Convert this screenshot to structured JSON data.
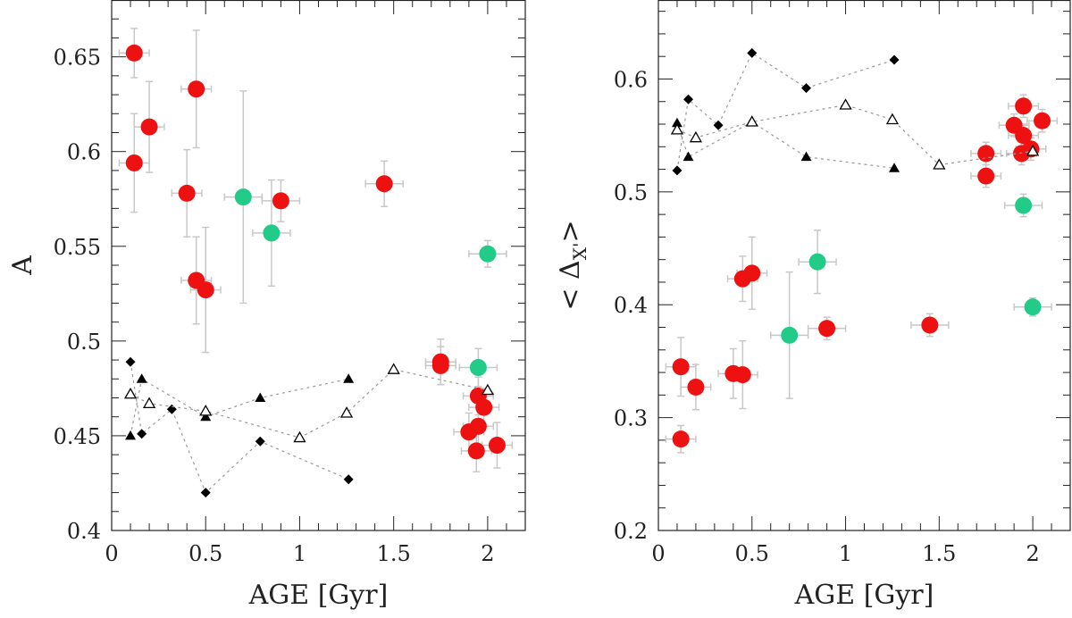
{
  "chart_data": [
    {
      "type": "scatter",
      "xlabel": "AGE [Gyr]",
      "ylabel": "A",
      "xlim": [
        0,
        2.2
      ],
      "ylim": [
        0.4,
        0.68
      ],
      "x_ticks": [
        0,
        0.5,
        1,
        1.5,
        2
      ],
      "x_tick_labels": [
        "0",
        "0.5",
        "1",
        "1.5",
        "2"
      ],
      "y_ticks": [
        0.4,
        0.45,
        0.5,
        0.55,
        0.6,
        0.65
      ],
      "y_tick_labels": [
        "0.4",
        "0.45",
        "0.5",
        "0.55",
        "0.6",
        "0.65"
      ],
      "grid": false,
      "series": [
        {
          "marker": "circle",
          "color": "#ee1111",
          "points": [
            {
              "x": 0.12,
              "y": 0.652,
              "xerr": 0.08,
              "yerr": 0.013
            },
            {
              "x": 0.2,
              "y": 0.613,
              "xerr": 0.08,
              "yerr": 0.024
            },
            {
              "x": 0.12,
              "y": 0.594,
              "xerr": 0.08,
              "yerr": 0.026
            },
            {
              "x": 0.45,
              "y": 0.633,
              "xerr": 0.08,
              "yerr": 0.031
            },
            {
              "x": 0.4,
              "y": 0.578,
              "xerr": 0.08,
              "yerr": 0.023
            },
            {
              "x": 0.45,
              "y": 0.532,
              "xerr": 0.08,
              "yerr": 0.023
            },
            {
              "x": 0.5,
              "y": 0.527,
              "xerr": 0.08,
              "yerr": 0.033
            },
            {
              "x": 0.9,
              "y": 0.574,
              "xerr": 0.1,
              "yerr": 0.011
            },
            {
              "x": 1.45,
              "y": 0.583,
              "xerr": 0.1,
              "yerr": 0.012
            },
            {
              "x": 1.75,
              "y": 0.489,
              "xerr": 0.08,
              "yerr": 0.012
            },
            {
              "x": 1.75,
              "y": 0.487,
              "xerr": 0.08,
              "yerr": 0.01
            },
            {
              "x": 1.95,
              "y": 0.471,
              "xerr": 0.08,
              "yerr": 0.01
            },
            {
              "x": 1.98,
              "y": 0.465,
              "xerr": 0.08,
              "yerr": 0.01
            },
            {
              "x": 1.95,
              "y": 0.455,
              "xerr": 0.08,
              "yerr": 0.011
            },
            {
              "x": 1.9,
              "y": 0.452,
              "xerr": 0.08,
              "yerr": 0.01
            },
            {
              "x": 1.94,
              "y": 0.442,
              "xerr": 0.08,
              "yerr": 0.011
            },
            {
              "x": 2.05,
              "y": 0.445,
              "xerr": 0.08,
              "yerr": 0.012
            }
          ]
        },
        {
          "marker": "circle",
          "color": "#22cc88",
          "points": [
            {
              "x": 0.7,
              "y": 0.576,
              "xerr": 0.1,
              "yerr": 0.056
            },
            {
              "x": 0.85,
              "y": 0.557,
              "xerr": 0.1,
              "yerr": 0.028
            },
            {
              "x": 2.0,
              "y": 0.546,
              "xerr": 0.1,
              "yerr": 0.007
            },
            {
              "x": 1.95,
              "y": 0.486,
              "xerr": 0.1,
              "yerr": 0.01
            }
          ]
        },
        {
          "marker": "diamond",
          "color": "#000000",
          "line": "dotted",
          "points": [
            {
              "x": 0.1,
              "y": 0.489
            },
            {
              "x": 0.16,
              "y": 0.451
            },
            {
              "x": 0.32,
              "y": 0.464
            },
            {
              "x": 0.5,
              "y": 0.42
            },
            {
              "x": 0.79,
              "y": 0.447
            },
            {
              "x": 1.26,
              "y": 0.427
            }
          ]
        },
        {
          "marker": "triangle-filled",
          "color": "#000000",
          "line": "dotted",
          "points": [
            {
              "x": 0.1,
              "y": 0.45
            },
            {
              "x": 0.16,
              "y": 0.48
            },
            {
              "x": 0.5,
              "y": 0.46
            },
            {
              "x": 0.79,
              "y": 0.47
            },
            {
              "x": 1.26,
              "y": 0.48
            }
          ]
        },
        {
          "marker": "triangle-open",
          "color": "#000000",
          "line": "dotted",
          "points": [
            {
              "x": 0.1,
              "y": 0.472
            },
            {
              "x": 0.2,
              "y": 0.467
            },
            {
              "x": 0.5,
              "y": 0.463
            },
            {
              "x": 1.0,
              "y": 0.449
            },
            {
              "x": 1.25,
              "y": 0.462
            },
            {
              "x": 1.5,
              "y": 0.485
            },
            {
              "x": 2.0,
              "y": 0.474
            }
          ]
        }
      ]
    },
    {
      "type": "scatter",
      "xlabel": "AGE [Gyr]",
      "ylabel": "<Δ_X'>",
      "ylabel_parts": {
        "open": "<",
        "symbol": "Δ",
        "sub": "X'",
        "close": ">"
      },
      "xlim": [
        0,
        2.2
      ],
      "ylim": [
        0.2,
        0.67
      ],
      "x_ticks": [
        0,
        0.5,
        1,
        1.5,
        2
      ],
      "x_tick_labels": [
        "0",
        "0.5",
        "1",
        "1.5",
        "2"
      ],
      "y_ticks": [
        0.2,
        0.3,
        0.4,
        0.5,
        0.6
      ],
      "y_tick_labels": [
        "0.2",
        "0.3",
        "0.4",
        "0.5",
        "0.6"
      ],
      "grid": false,
      "series": [
        {
          "marker": "circle",
          "color": "#ee1111",
          "points": [
            {
              "x": 0.12,
              "y": 0.345,
              "xerr": 0.08,
              "yerr": 0.026
            },
            {
              "x": 0.2,
              "y": 0.327,
              "xerr": 0.08,
              "yerr": 0.02
            },
            {
              "x": 0.12,
              "y": 0.281,
              "xerr": 0.08,
              "yerr": 0.012
            },
            {
              "x": 0.4,
              "y": 0.339,
              "xerr": 0.08,
              "yerr": 0.022
            },
            {
              "x": 0.45,
              "y": 0.338,
              "xerr": 0.08,
              "yerr": 0.03
            },
            {
              "x": 0.45,
              "y": 0.423,
              "xerr": 0.08,
              "yerr": 0.02
            },
            {
              "x": 0.5,
              "y": 0.428,
              "xerr": 0.08,
              "yerr": 0.032
            },
            {
              "x": 0.9,
              "y": 0.379,
              "xerr": 0.1,
              "yerr": 0.01
            },
            {
              "x": 1.45,
              "y": 0.382,
              "xerr": 0.1,
              "yerr": 0.01
            },
            {
              "x": 1.75,
              "y": 0.534,
              "xerr": 0.08,
              "yerr": 0.01
            },
            {
              "x": 1.75,
              "y": 0.514,
              "xerr": 0.08,
              "yerr": 0.01
            },
            {
              "x": 1.9,
              "y": 0.559,
              "xerr": 0.08,
              "yerr": 0.01
            },
            {
              "x": 1.95,
              "y": 0.576,
              "xerr": 0.08,
              "yerr": 0.01
            },
            {
              "x": 1.95,
              "y": 0.55,
              "xerr": 0.08,
              "yerr": 0.01
            },
            {
              "x": 1.94,
              "y": 0.534,
              "xerr": 0.08,
              "yerr": 0.01
            },
            {
              "x": 1.99,
              "y": 0.538,
              "xerr": 0.08,
              "yerr": 0.01
            },
            {
              "x": 2.05,
              "y": 0.563,
              "xerr": 0.08,
              "yerr": 0.01
            }
          ]
        },
        {
          "marker": "circle",
          "color": "#22cc88",
          "points": [
            {
              "x": 0.7,
              "y": 0.373,
              "xerr": 0.1,
              "yerr": 0.056
            },
            {
              "x": 0.85,
              "y": 0.438,
              "xerr": 0.1,
              "yerr": 0.028
            },
            {
              "x": 1.95,
              "y": 0.488,
              "xerr": 0.1,
              "yerr": 0.01
            },
            {
              "x": 2.0,
              "y": 0.398,
              "xerr": 0.1,
              "yerr": 0.008
            }
          ]
        },
        {
          "marker": "diamond",
          "color": "#000000",
          "line": "dotted",
          "points": [
            {
              "x": 0.1,
              "y": 0.519
            },
            {
              "x": 0.16,
              "y": 0.582
            },
            {
              "x": 0.32,
              "y": 0.559
            },
            {
              "x": 0.5,
              "y": 0.623
            },
            {
              "x": 0.79,
              "y": 0.592
            },
            {
              "x": 1.26,
              "y": 0.617
            }
          ]
        },
        {
          "marker": "triangle-filled",
          "color": "#000000",
          "line": "dotted",
          "points": [
            {
              "x": 0.1,
              "y": 0.561
            },
            {
              "x": 0.16,
              "y": 0.531
            },
            {
              "x": 0.5,
              "y": 0.562
            },
            {
              "x": 0.79,
              "y": 0.531
            },
            {
              "x": 1.26,
              "y": 0.521
            }
          ]
        },
        {
          "marker": "triangle-open",
          "color": "#000000",
          "line": "dotted",
          "points": [
            {
              "x": 0.1,
              "y": 0.555
            },
            {
              "x": 0.2,
              "y": 0.548
            },
            {
              "x": 0.5,
              "y": 0.562
            },
            {
              "x": 1.0,
              "y": 0.577
            },
            {
              "x": 1.25,
              "y": 0.564
            },
            {
              "x": 1.5,
              "y": 0.524
            },
            {
              "x": 2.0,
              "y": 0.536
            }
          ]
        }
      ]
    }
  ]
}
